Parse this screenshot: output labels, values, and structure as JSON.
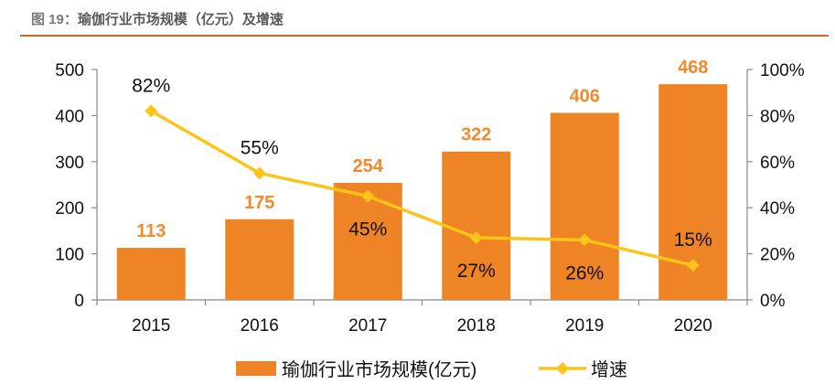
{
  "figure": {
    "number": "图 19：",
    "title": "瑜伽行业市场规模（亿元）及增速"
  },
  "colors": {
    "bar": "#ee8426",
    "line": "#fcc419",
    "bar_label": "#f28a2c",
    "title_rule": "#c46a24"
  },
  "chart_data": {
    "type": "bar",
    "categories": [
      "2015",
      "2016",
      "2017",
      "2018",
      "2019",
      "2020"
    ],
    "series": [
      {
        "name": "瑜伽行业市场规模(亿元)",
        "type": "bar",
        "axis": "left",
        "values": [
          113,
          175,
          254,
          322,
          406,
          468
        ],
        "labels": [
          "113",
          "175",
          "254",
          "322",
          "406",
          "468"
        ]
      },
      {
        "name": "增速",
        "type": "line",
        "axis": "right",
        "marker": "diamond",
        "values": [
          82,
          55,
          45,
          27,
          26,
          15
        ],
        "labels": [
          "82%",
          "55%",
          "45%",
          "27%",
          "26%",
          "15%"
        ]
      }
    ],
    "y_left": {
      "min": 0,
      "max": 500,
      "ticks": [
        "0",
        "100",
        "200",
        "300",
        "400",
        "500"
      ]
    },
    "y_right": {
      "min": 0,
      "max": 100,
      "ticks": [
        "0%",
        "20%",
        "40%",
        "60%",
        "80%",
        "100%"
      ]
    },
    "legend": {
      "position": "bottom",
      "entries": [
        "瑜伽行业市场规模(亿元)",
        "增速"
      ]
    },
    "grid": false
  }
}
